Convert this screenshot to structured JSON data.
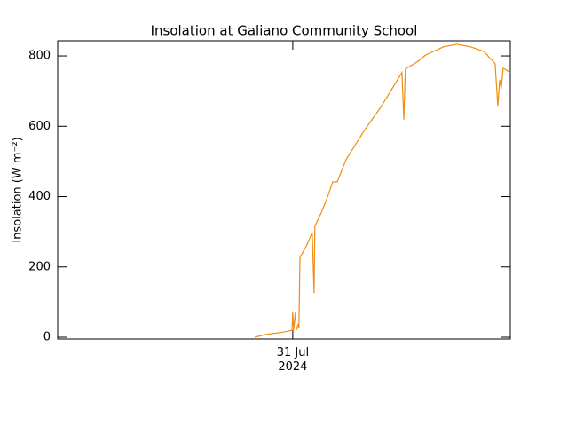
{
  "chart_data": {
    "type": "line",
    "title": "Insolation at Galiano Community School",
    "y_label": "Insolation (W m⁻²)",
    "x": [
      -1.43,
      -1,
      -0.33,
      -0.03,
      0,
      0.03,
      0.1,
      0.13,
      0.2,
      0.23,
      0.27,
      0.5,
      0.73,
      0.8,
      0.83,
      1.07,
      1.33,
      1.5,
      1.67,
      2,
      2.67,
      3.33,
      4.1,
      4.17,
      4.23,
      4.67,
      5,
      5.67,
      6.17,
      6.67,
      7.17,
      7.6,
      7.7,
      7.77,
      7.83,
      7.9,
      8.17
    ],
    "series": [
      {
        "color": "#f08c10",
        "values": [
          0,
          8,
          15,
          20,
          71,
          20,
          71,
          20,
          35,
          25,
          227,
          258,
          298,
          126,
          316,
          354,
          404,
          442,
          442,
          505,
          586,
          657,
          753,
          619,
          763,
          783,
          803,
          826,
          833,
          826,
          813,
          778,
          657,
          732,
          707,
          765,
          753
        ]
      }
    ],
    "xlim": [
      -8.83,
      8.17
    ],
    "xticks": [
      {
        "value": 0,
        "label": "31 Jul 2024"
      }
    ],
    "ylim": [
      -5,
      843
    ],
    "yticks": [
      0,
      200,
      400,
      600,
      800
    ]
  }
}
